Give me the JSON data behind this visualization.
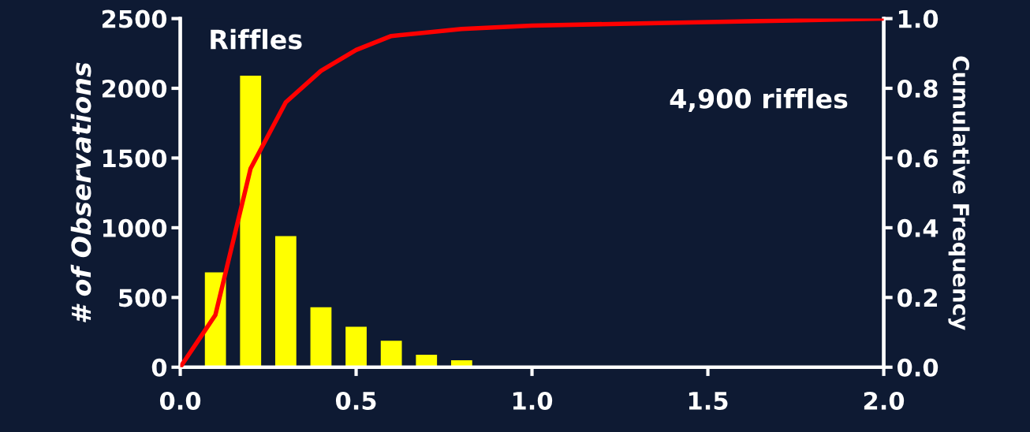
{
  "chart_data": {
    "type": "bar",
    "ylabel": "# of Observations",
    "y2label": "Cumulative Frequency",
    "annotations": [
      "Riffles",
      "4,900 riffles"
    ],
    "x": [
      0.1,
      0.2,
      0.3,
      0.4,
      0.5,
      0.6,
      0.7,
      0.8
    ],
    "series": [
      {
        "color": "#ffff00",
        "values": [
          680,
          2090,
          940,
          430,
          290,
          190,
          90,
          50
        ]
      },
      {
        "type": "line",
        "axis": "y2",
        "color": "#ff0000",
        "x": [
          0.0,
          0.1,
          0.2,
          0.3,
          0.4,
          0.5,
          0.6,
          0.7,
          0.8,
          1.0,
          1.5,
          2.0
        ],
        "values": [
          0.0,
          0.15,
          0.57,
          0.76,
          0.85,
          0.91,
          0.95,
          0.96,
          0.97,
          0.98,
          0.99,
          1.0
        ]
      }
    ],
    "xlim": [
      0.0,
      2.0
    ],
    "xticks": [
      {
        "value": 0.0,
        "label": "0.0"
      },
      {
        "value": 0.5,
        "label": "0.5"
      },
      {
        "value": 1.0,
        "label": "1.0"
      },
      {
        "value": 1.5,
        "label": "1.5"
      },
      {
        "value": 2.0,
        "label": "2.0"
      }
    ],
    "ylim": [
      0,
      2500
    ],
    "yticks": [
      0,
      500,
      1000,
      1500,
      2000,
      2500
    ],
    "y2lim": [
      0.0,
      1.0
    ],
    "y2ticks": [
      {
        "value": 0.0,
        "label": "0.0"
      },
      {
        "value": 0.2,
        "label": "0.2"
      },
      {
        "value": 0.4,
        "label": "0.4"
      },
      {
        "value": 0.6,
        "label": "0.6"
      },
      {
        "value": 0.8,
        "label": "0.8"
      },
      {
        "value": 1.0,
        "label": "1.0"
      }
    ],
    "grid": false,
    "legend": false
  }
}
